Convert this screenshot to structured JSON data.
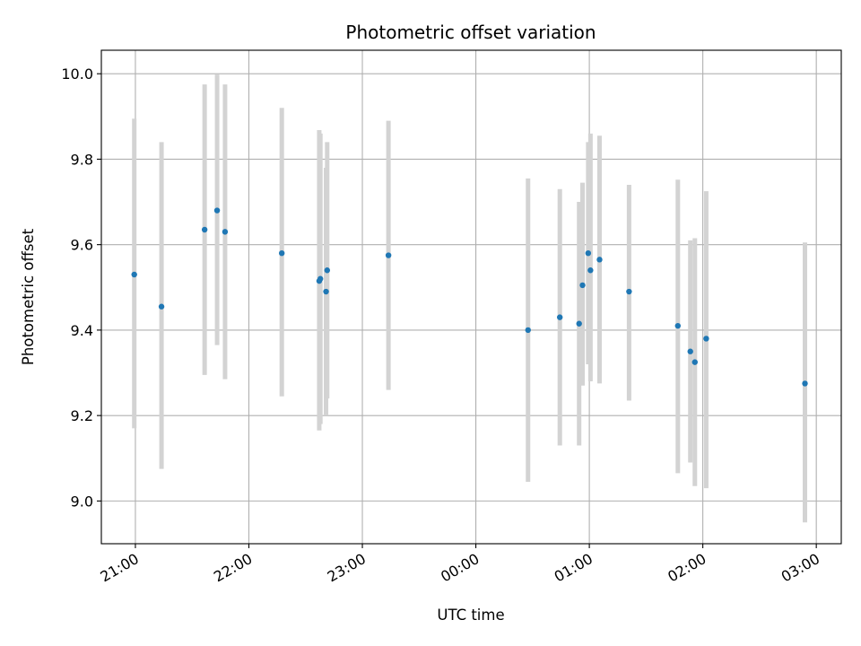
{
  "chart_data": {
    "type": "scatter",
    "title": "Photometric offset variation",
    "xlabel": "UTC time",
    "ylabel": "Photometric offset",
    "x_unit": "hours since 21:00 UTC",
    "xlim": [
      -0.3,
      6.22
    ],
    "ylim": [
      8.9,
      10.055
    ],
    "grid": true,
    "point_color": "#1f77b4",
    "errorbar_color": "#d3d3d3",
    "x_ticks": [
      {
        "value": 0,
        "label": "21:00"
      },
      {
        "value": 1,
        "label": "22:00"
      },
      {
        "value": 2,
        "label": "23:00"
      },
      {
        "value": 3,
        "label": "00:00"
      },
      {
        "value": 4,
        "label": "01:00"
      },
      {
        "value": 5,
        "label": "02:00"
      },
      {
        "value": 6,
        "label": "03:00"
      }
    ],
    "y_ticks": [
      {
        "value": 9.0,
        "label": "9.0"
      },
      {
        "value": 9.2,
        "label": "9.2"
      },
      {
        "value": 9.4,
        "label": "9.4"
      },
      {
        "value": 9.6,
        "label": "9.6"
      },
      {
        "value": 9.8,
        "label": "9.8"
      },
      {
        "value": 10.0,
        "label": "10.0"
      }
    ],
    "points": [
      {
        "x": -0.01,
        "y": 9.53,
        "lo": 9.17,
        "hi": 9.895
      },
      {
        "x": 0.23,
        "y": 9.455,
        "lo": 9.075,
        "hi": 9.84
      },
      {
        "x": 0.61,
        "y": 9.635,
        "lo": 9.295,
        "hi": 9.975
      },
      {
        "x": 0.72,
        "y": 9.68,
        "lo": 9.365,
        "hi": 9.998
      },
      {
        "x": 0.79,
        "y": 9.63,
        "lo": 9.285,
        "hi": 9.975
      },
      {
        "x": 1.29,
        "y": 9.58,
        "lo": 9.245,
        "hi": 9.92
      },
      {
        "x": 1.62,
        "y": 9.515,
        "lo": 9.165,
        "hi": 9.868
      },
      {
        "x": 1.63,
        "y": 9.52,
        "lo": 9.18,
        "hi": 9.86
      },
      {
        "x": 1.68,
        "y": 9.49,
        "lo": 9.2,
        "hi": 9.78
      },
      {
        "x": 1.69,
        "y": 9.54,
        "lo": 9.24,
        "hi": 9.84
      },
      {
        "x": 2.23,
        "y": 9.575,
        "lo": 9.26,
        "hi": 9.89
      },
      {
        "x": 3.46,
        "y": 9.4,
        "lo": 9.045,
        "hi": 9.755
      },
      {
        "x": 3.74,
        "y": 9.43,
        "lo": 9.13,
        "hi": 9.73
      },
      {
        "x": 3.91,
        "y": 9.415,
        "lo": 9.13,
        "hi": 9.7
      },
      {
        "x": 3.94,
        "y": 9.505,
        "lo": 9.27,
        "hi": 9.745
      },
      {
        "x": 3.99,
        "y": 9.58,
        "lo": 9.32,
        "hi": 9.84
      },
      {
        "x": 4.01,
        "y": 9.54,
        "lo": 9.28,
        "hi": 9.86
      },
      {
        "x": 4.09,
        "y": 9.565,
        "lo": 9.275,
        "hi": 9.855
      },
      {
        "x": 4.35,
        "y": 9.49,
        "lo": 9.235,
        "hi": 9.74
      },
      {
        "x": 4.78,
        "y": 9.41,
        "lo": 9.065,
        "hi": 9.752
      },
      {
        "x": 4.89,
        "y": 9.35,
        "lo": 9.09,
        "hi": 9.61
      },
      {
        "x": 4.93,
        "y": 9.325,
        "lo": 9.035,
        "hi": 9.615
      },
      {
        "x": 5.03,
        "y": 9.38,
        "lo": 9.03,
        "hi": 9.725
      },
      {
        "x": 5.9,
        "y": 9.275,
        "lo": 8.95,
        "hi": 9.605
      }
    ]
  }
}
